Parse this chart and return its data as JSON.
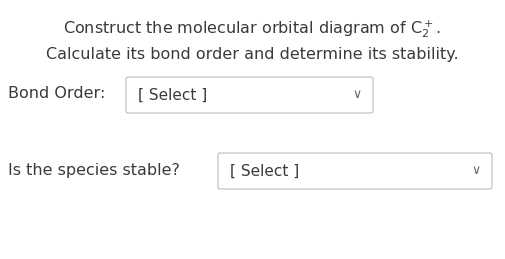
{
  "title_line1": "Construct the molecular orbital diagram of $\\mathregular{C_2^+}$.",
  "title_line2": "Calculate its bond order and determine its stability.",
  "label1": "Bond Order:",
  "label2": "Is the species stable?",
  "select_text": "[ Select ]",
  "chevron": "∨",
  "bg_color": "#ffffff",
  "text_color": "#3a3a3a",
  "box_border_color": "#bbbbbb",
  "fontsize_main": 11.5,
  "fontsize_select": 11.0
}
